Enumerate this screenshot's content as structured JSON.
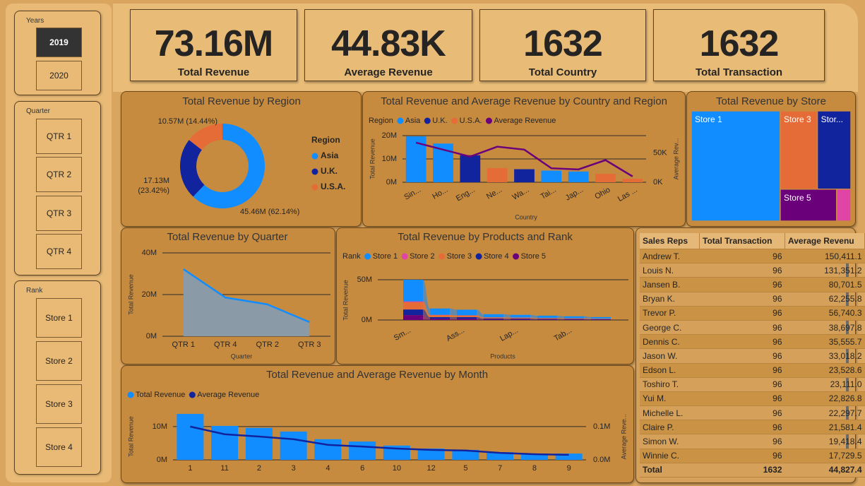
{
  "slicers": [
    {
      "title": "Years",
      "items": [
        "2019",
        "2020"
      ],
      "selected": 0
    },
    {
      "title": "Quarter",
      "items": [
        "QTR 1",
        "QTR 2",
        "QTR 3",
        "QTR 4"
      ]
    },
    {
      "title": "Rank",
      "items": [
        "Store 1",
        "Store 2",
        "Store 3",
        "Store 4"
      ]
    }
  ],
  "cards": [
    {
      "value": "73.16M",
      "label": "Total Revenue"
    },
    {
      "value": "44.83K",
      "label": "Average Revenue"
    },
    {
      "value": "1632",
      "label": "Total Country"
    },
    {
      "value": "1632",
      "label": "Total Transaction"
    }
  ],
  "chart_data": [
    {
      "type": "pie",
      "donut": true,
      "title": "Total Revenue by Region",
      "legend_title": "Region",
      "categories": [
        "Asia",
        "U.K.",
        "U.S.A."
      ],
      "values": [
        45.46,
        17.13,
        10.57
      ],
      "value_labels": [
        "45.46M (62.14%)",
        "17.13M (23.42%)",
        "10.57M (14.44%)"
      ],
      "colors": [
        "#118DFF",
        "#12239E",
        "#E66C37"
      ]
    },
    {
      "type": "combo",
      "title": "Total Revenue and Average Revenue by Country and Region",
      "legend_title": "Region",
      "x_label": "Country",
      "y_label": "Total Revenue",
      "y2_label": "Average Rev...",
      "categories": [
        "Sin...",
        "Ho...",
        "Eng...",
        "Ne...",
        "Wa...",
        "Tai...",
        "Jap...",
        "Ohio",
        "Las ..."
      ],
      "series": [
        {
          "name": "Asia",
          "color": "#118DFF",
          "values": [
            19.7,
            16.6,
            null,
            null,
            null,
            5.0,
            4.6,
            null,
            null
          ]
        },
        {
          "name": "U.K.",
          "color": "#12239E",
          "values": [
            null,
            null,
            11.6,
            null,
            5.6,
            null,
            null,
            null,
            null
          ]
        },
        {
          "name": "U.S.A.",
          "color": "#E66C37",
          "values": [
            null,
            null,
            null,
            6.1,
            null,
            null,
            null,
            3.6,
            1.5
          ]
        },
        {
          "name": "Average Revenue",
          "type": "line",
          "axis": "y2",
          "color": "#6B007B",
          "values": [
            68,
            56,
            44,
            61,
            56,
            24,
            22,
            38,
            10
          ]
        }
      ],
      "ylim": [
        0,
        20
      ],
      "yticks": [
        {
          "value": 0,
          "label": "0M"
        },
        {
          "value": 10,
          "label": "10M"
        },
        {
          "value": 20,
          "label": "20M"
        }
      ],
      "y2lim": [
        0,
        80
      ],
      "y2ticks": [
        {
          "value": 0,
          "label": "0K"
        },
        {
          "value": 50,
          "label": "50K"
        }
      ],
      "grid": true
    },
    {
      "type": "treemap",
      "title": "Total Revenue by Store",
      "categories": [
        "Store 1",
        "Store 3",
        "Stor...",
        "Store 5",
        null
      ],
      "values": [
        40.8,
        12.1,
        10.9,
        7.5,
        1.9
      ],
      "colors": [
        "#118DFF",
        "#E66C37",
        "#12239E",
        "#6B007B",
        "#E044A7"
      ]
    },
    {
      "type": "area",
      "title": "Total Revenue by Quarter",
      "x_label": "Quarter",
      "y_label": "Total Revenue",
      "categories": [
        "QTR 1",
        "QTR 4",
        "QTR 2",
        "QTR 3"
      ],
      "values": [
        32.2,
        18.6,
        15.3,
        6.8
      ],
      "color": "#118DFF",
      "fill": "#8A9AA6",
      "ylim": [
        0,
        40
      ],
      "yticks": [
        {
          "value": 0,
          "label": "0M"
        },
        {
          "value": 20,
          "label": "20M"
        },
        {
          "value": 40,
          "label": "40M"
        }
      ],
      "grid": true
    },
    {
      "type": "ribbon",
      "title": "Total Revenue by Products and Rank",
      "legend_title": "Rank",
      "x_label": "Products",
      "y_label": "Total Revenue",
      "categories": [
        "Sm...",
        null,
        "Ass...",
        null,
        "Lap...",
        null,
        "Tab...",
        null
      ],
      "series": [
        {
          "name": "Store 1",
          "color": "#118DFF",
          "values": [
            27,
            8,
            7,
            4,
            3.5,
            3,
            2.5,
            2
          ]
        },
        {
          "name": "Store 2",
          "color": "#E044A7",
          "values": [
            1,
            0.3,
            0.3,
            0.2,
            0.2,
            0.1,
            0.1,
            0.1
          ]
        },
        {
          "name": "Store 3",
          "color": "#E66C37",
          "values": [
            9,
            2.5,
            2,
            1.2,
            1,
            0.9,
            0.8,
            0.6
          ]
        },
        {
          "name": "Store 4",
          "color": "#12239E",
          "values": [
            7,
            2,
            2,
            1,
            1,
            0.8,
            0.7,
            0.5
          ]
        },
        {
          "name": "Store 5",
          "color": "#6B007B",
          "values": [
            6,
            1.5,
            1.5,
            0.8,
            0.7,
            0.6,
            0.5,
            0.4
          ]
        }
      ],
      "ylim": [
        0,
        50
      ],
      "yticks": [
        {
          "value": 0,
          "label": "0M"
        },
        {
          "value": 50,
          "label": "50M"
        }
      ],
      "grid": true
    },
    {
      "type": "combo",
      "title": "Total Revenue and Average Revenue by Month",
      "y_label": "Total Revenue",
      "y2_label": "Average Reve...",
      "categories": [
        "1",
        "11",
        "2",
        "3",
        "4",
        "6",
        "10",
        "12",
        "5",
        "7",
        "8",
        "9"
      ],
      "series": [
        {
          "name": "Total Revenue",
          "color": "#118DFF",
          "values": [
            13.8,
            10.2,
            9.6,
            8.5,
            6.2,
            5.5,
            4.3,
            3.4,
            3.0,
            2.3,
            1.9,
            1.9
          ]
        },
        {
          "name": "Average Revenue",
          "type": "line",
          "axis": "y2",
          "color": "#12239E",
          "values": [
            0.1,
            0.077,
            0.07,
            0.062,
            0.045,
            0.04,
            0.034,
            0.03,
            0.028,
            0.021,
            0.017,
            0.015
          ]
        }
      ],
      "ylim": [
        0,
        14
      ],
      "yticks": [
        {
          "value": 0,
          "label": "0M"
        },
        {
          "value": 10,
          "label": "10M"
        }
      ],
      "y2lim": [
        0,
        0.14
      ],
      "y2ticks": [
        {
          "value": 0,
          "label": "0.0M"
        },
        {
          "value": 0.1,
          "label": "0.1M"
        }
      ],
      "grid": true
    }
  ],
  "table": {
    "columns": [
      "Sales Reps",
      "Total Transaction",
      "Average Revenu"
    ],
    "rows": [
      [
        "Andrew T.",
        "96",
        "150,411.1"
      ],
      [
        "Louis N.",
        "96",
        "131,351.2"
      ],
      [
        "Jansen B.",
        "96",
        "80,701.5"
      ],
      [
        "Bryan K.",
        "96",
        "62,255.8"
      ],
      [
        "Trevor P.",
        "96",
        "56,740.3"
      ],
      [
        "George C.",
        "96",
        "38,697.8"
      ],
      [
        "Dennis C.",
        "96",
        "35,555.7"
      ],
      [
        "Jason W.",
        "96",
        "33,018.2"
      ],
      [
        "Edson L.",
        "96",
        "23,528.6"
      ],
      [
        "Toshiro T.",
        "96",
        "23,111.0"
      ],
      [
        "Yui M.",
        "96",
        "22,826.8"
      ],
      [
        "Michelle L.",
        "96",
        "22,297.7"
      ],
      [
        "Claire P.",
        "96",
        "21,581.4"
      ],
      [
        "Simon W.",
        "96",
        "19,418.4"
      ],
      [
        "Winnie C.",
        "96",
        "17,729.5"
      ]
    ],
    "total": [
      "Total",
      "1632",
      "44,827.4"
    ]
  }
}
